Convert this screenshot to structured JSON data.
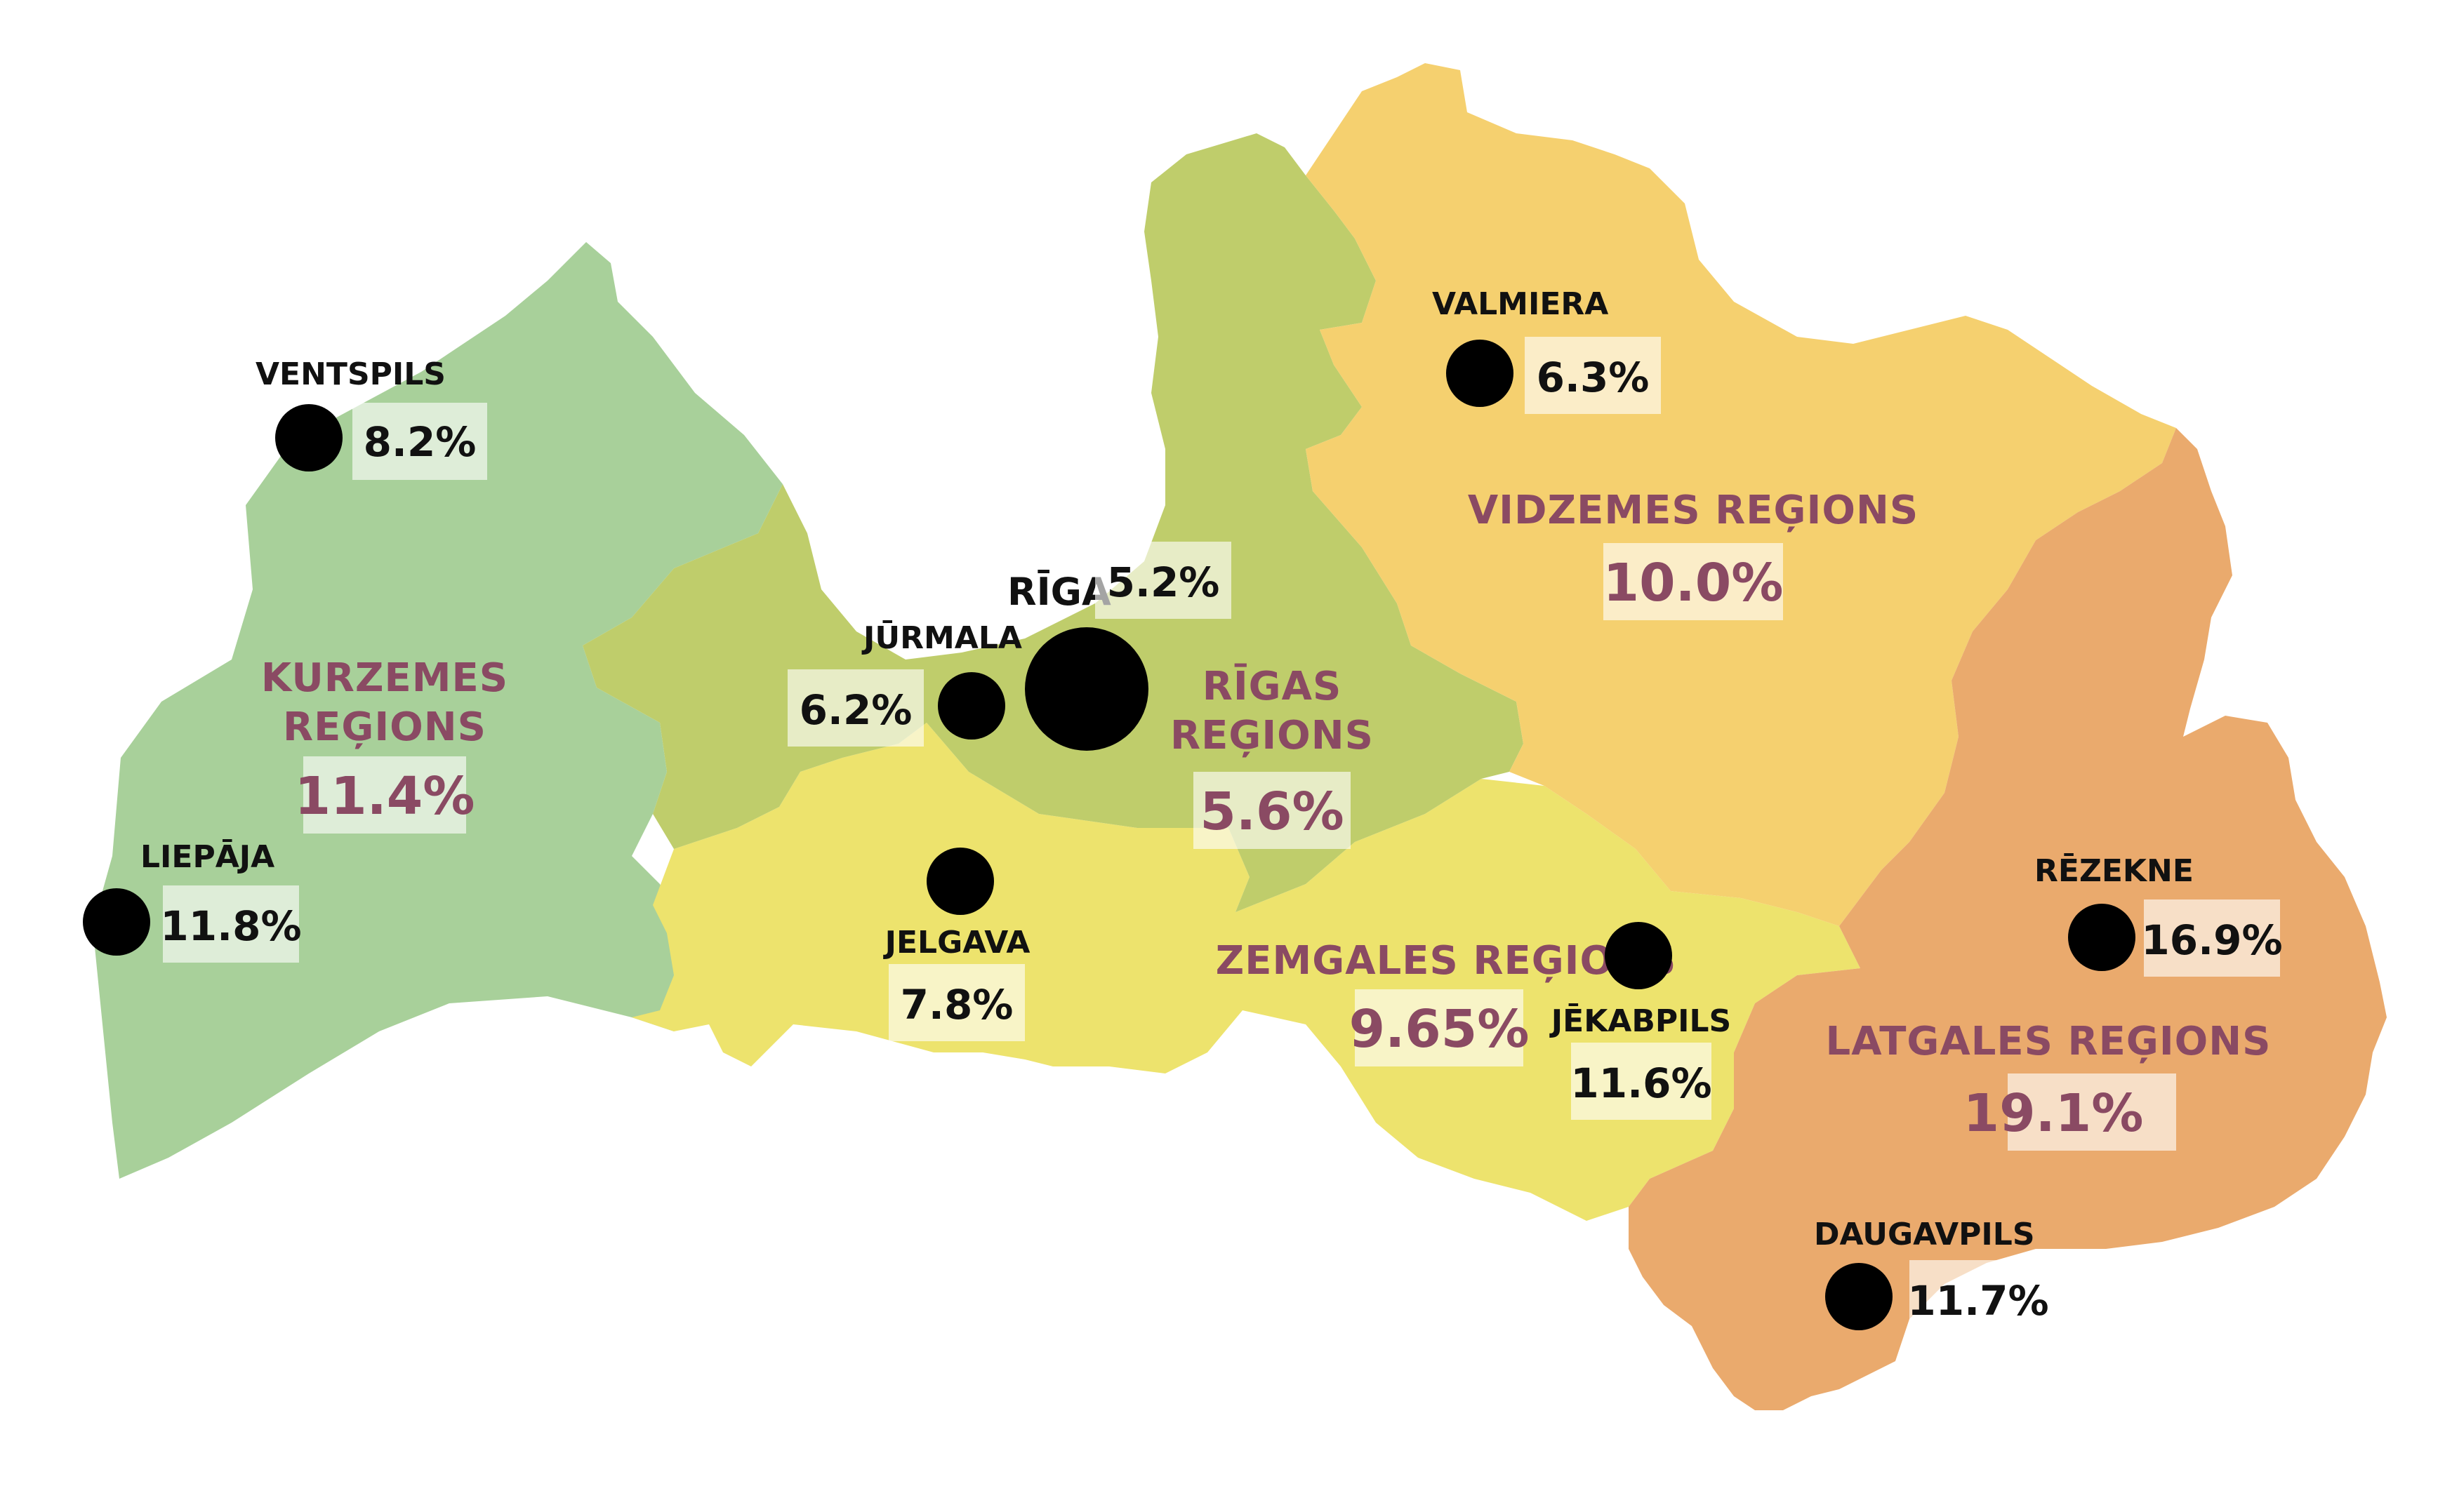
{
  "colors": {
    "kurzeme": "#a8d09a",
    "riga": "#bfcd6b",
    "vidzeme": "#f5d06f",
    "zemgale": "#ede36d",
    "latgale": "#eaaa6d",
    "region_label": "#8a4a63",
    "dot": "#000000",
    "value_box": "#ffffff",
    "value_box_opacity": 0.62
  },
  "regions": [
    {
      "id": "kurzeme",
      "name_lines": [
        "KURZEMES",
        "REĢIONS"
      ],
      "value": "11.4%"
    },
    {
      "id": "riga",
      "name_lines": [
        "RĪGAS",
        "REĢIONS"
      ],
      "value": "5.6%"
    },
    {
      "id": "vidzeme",
      "name_lines": [
        "VIDZEMES REĢIONS"
      ],
      "value": "10.0%"
    },
    {
      "id": "zemgale",
      "name_lines": [
        "ZEMGALES REĢIONS"
      ],
      "value": "9.65%"
    },
    {
      "id": "latgale",
      "name_lines": [
        "LATGALES REĢIONS"
      ],
      "value": "19.1%"
    }
  ],
  "cities": [
    {
      "id": "ventspils",
      "name": "VENTSPILS",
      "value": "8.2%"
    },
    {
      "id": "liepaja",
      "name": "LIEPĀJA",
      "value": "11.8%"
    },
    {
      "id": "jurmala",
      "name": "JŪRMALA",
      "value": "6.2%"
    },
    {
      "id": "riga",
      "name": "RĪGA",
      "value": "5.2%"
    },
    {
      "id": "jelgava",
      "name": "JELGAVA",
      "value": "7.8%"
    },
    {
      "id": "valmiera",
      "name": "VALMIERA",
      "value": "6.3%"
    },
    {
      "id": "jekabpils",
      "name": "JĒKABPILS",
      "value": "11.6%"
    },
    {
      "id": "rezekne",
      "name": "RĒZEKNE",
      "value": "16.9%"
    },
    {
      "id": "daugavpils",
      "name": "DAUGAVPILS",
      "value": "11.7%"
    }
  ]
}
